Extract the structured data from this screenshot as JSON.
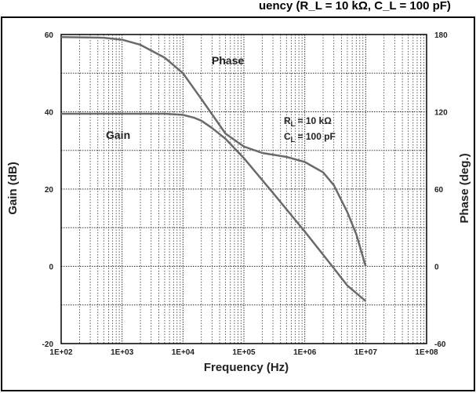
{
  "title_fragment": "uency (R_L = 10 kΩ, C_L = 100 pF)",
  "chart_data": {
    "type": "line",
    "xscale": "log",
    "xlim": [
      100,
      100000000
    ],
    "xlabel": "Frequency (Hz)",
    "x_ticks": [
      "1E+02",
      "1E+03",
      "1E+04",
      "1E+05",
      "1E+06",
      "1E+07",
      "1E+08"
    ],
    "y_left": {
      "label": "Gain (dB)",
      "lim": [
        -20,
        60
      ],
      "ticks": [
        "-20",
        "0",
        "20",
        "40",
        "60"
      ]
    },
    "y_right": {
      "label": "Phase (deg.)",
      "lim": [
        -60,
        180
      ],
      "ticks": [
        "-60",
        "0",
        "60",
        "120",
        "180"
      ]
    },
    "grid": true,
    "annotations": {
      "phase": "Phase",
      "gain": "Gain",
      "rl_prefix": "R",
      "rl_sub": "L",
      "rl_value": " = 10 kΩ",
      "cl_prefix": "C",
      "cl_sub": "L",
      "cl_value": " = 100 pF"
    },
    "series": [
      {
        "name": "Gain",
        "axis": "left",
        "x": [
          100,
          1000,
          5000,
          10000,
          15000,
          20000,
          30000,
          50000,
          100000,
          300000,
          1000000,
          3000000,
          5000000,
          10000000
        ],
        "y": [
          39.5,
          39.5,
          39.5,
          39.2,
          38.5,
          37.7,
          35.8,
          33,
          28,
          19,
          9,
          -0.5,
          -5,
          -9
        ]
      },
      {
        "name": "Phase",
        "axis": "right",
        "x": [
          100,
          500,
          1000,
          2000,
          5000,
          10000,
          20000,
          50000,
          100000,
          200000,
          500000,
          1000000,
          2000000,
          3000000,
          5000000,
          7000000,
          10000000
        ],
        "y": [
          178,
          177.5,
          176,
          172,
          162,
          150,
          130,
          103,
          93,
          88,
          85,
          81,
          73,
          63,
          42,
          25,
          0
        ]
      }
    ]
  }
}
